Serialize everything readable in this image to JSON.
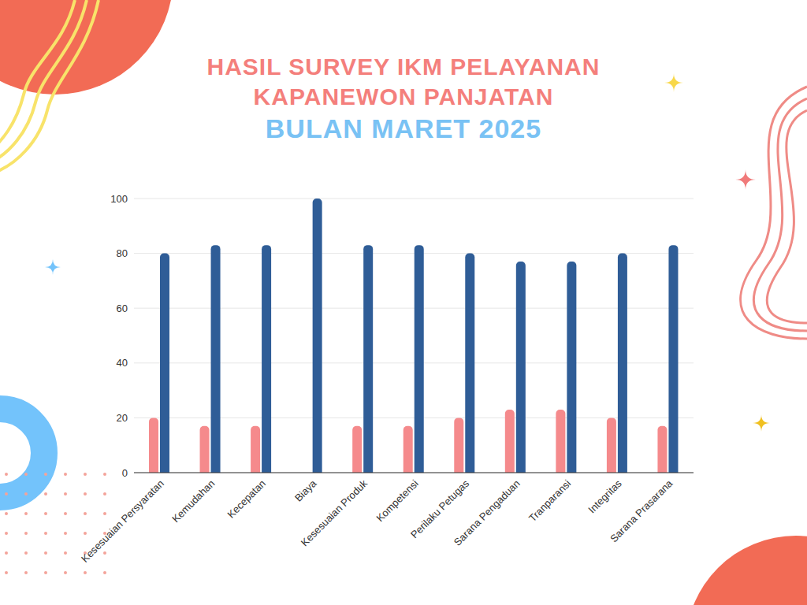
{
  "chart_data": {
    "type": "bar",
    "title": "HASIL SURVEY IKM PELAYANAN KAPANEWON PANJATAN",
    "subtitle": "BULAN MARET 2025",
    "categories": [
      "Kesesuaian Persyaratan",
      "Kemudahan",
      "Kecepatan",
      "Biaya",
      "Kesesuaian Produk",
      "Kompetensi",
      "Perilaku Petugas",
      "Sarana Pengaduan",
      "Tranparansi",
      "Integritas",
      "Sarana Prasarana"
    ],
    "series": [
      {
        "color": "#f58a8c",
        "values": [
          20,
          17,
          17,
          0,
          17,
          17,
          20,
          23,
          23,
          20,
          17
        ]
      },
      {
        "color": "#2f5d97",
        "values": [
          80,
          83,
          83,
          100,
          83,
          83,
          80,
          77,
          77,
          80,
          83
        ]
      }
    ],
    "ylim": [
      0,
      100
    ],
    "yticks": [
      0,
      20,
      40,
      60,
      80,
      100
    ],
    "grid": true
  }
}
